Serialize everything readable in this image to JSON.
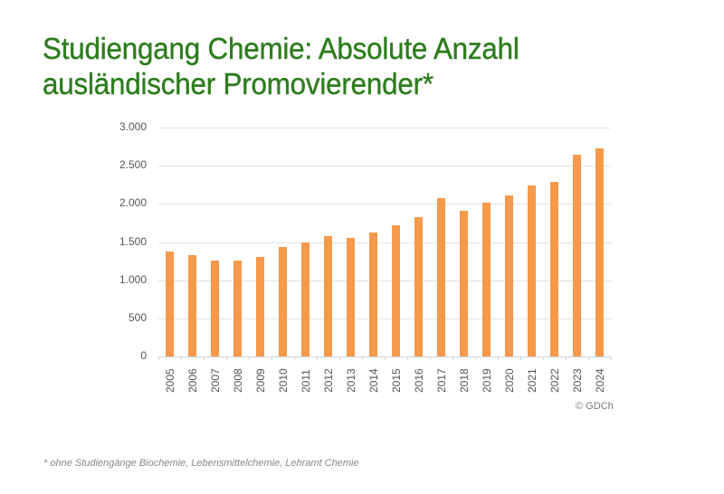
{
  "title": {
    "line1": "Studiengang Chemie: Absolute Anzahl",
    "line2": "ausländischer Promovierender*"
  },
  "credit": "© GDCh",
  "footnote": "* ohne Studiengänge Biochemie, Lebensmittelchemie, Lehramt Chemie",
  "colors": {
    "title": "#2e7d1e",
    "bar": "#f6994a",
    "grid": "#e3e3e3"
  },
  "chart_data": {
    "type": "bar",
    "title": "Studiengang Chemie: Absolute Anzahl ausländischer Promovierender*",
    "xlabel": "",
    "ylabel": "",
    "categories": [
      "2005",
      "2006",
      "2007",
      "2008",
      "2009",
      "2010",
      "2011",
      "2012",
      "2013",
      "2014",
      "2015",
      "2016",
      "2017",
      "2018",
      "2019",
      "2020",
      "2021",
      "2022",
      "2023",
      "2024"
    ],
    "values": [
      1375,
      1325,
      1255,
      1262,
      1300,
      1437,
      1495,
      1575,
      1550,
      1630,
      1718,
      1828,
      2080,
      1915,
      2012,
      2105,
      2242,
      2286,
      2639,
      2731
    ],
    "ylim": [
      0,
      3000
    ],
    "yticks": [
      "0",
      "500",
      "1.000",
      "1.500",
      "2.000",
      "2.500",
      "3.000"
    ],
    "ytick_values": [
      0,
      500,
      1000,
      1500,
      2000,
      2500,
      3000
    ],
    "grid": true,
    "legend": null,
    "annotations": [
      "© GDCh",
      "* ohne Studiengänge Biochemie, Lebensmittelchemie, Lehramt Chemie"
    ]
  }
}
